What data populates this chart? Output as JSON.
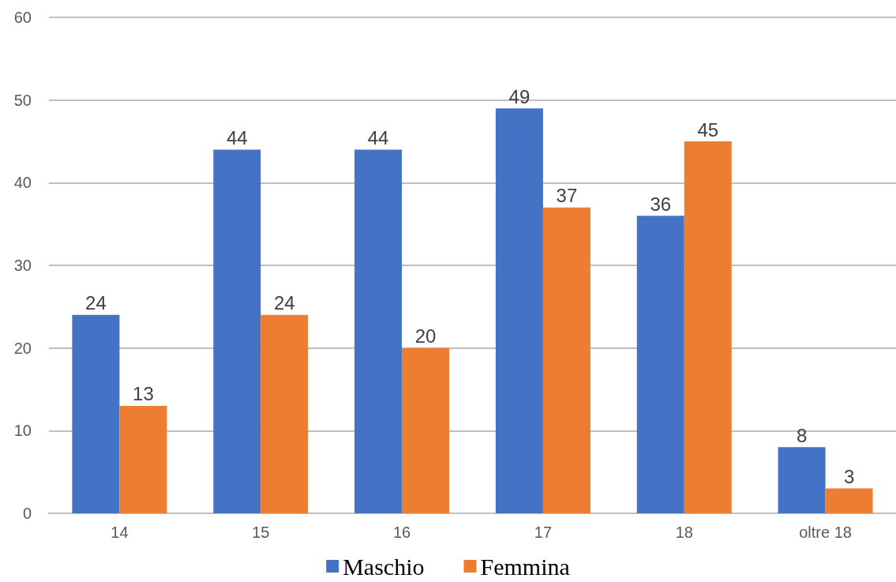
{
  "chart_data": {
    "type": "bar",
    "categories": [
      "14",
      "15",
      "16",
      "17",
      "18",
      "oltre 18"
    ],
    "series": [
      {
        "name": "Maschio",
        "color": "#4472c4",
        "values": [
          24,
          44,
          44,
          49,
          36,
          8
        ]
      },
      {
        "name": "Femmina",
        "color": "#ed7d31",
        "values": [
          13,
          24,
          20,
          37,
          45,
          3
        ]
      }
    ],
    "ylim": [
      0,
      60
    ],
    "yticks": [
      0,
      10,
      20,
      30,
      40,
      50,
      60
    ],
    "grid": "y",
    "legend": "bottom",
    "data_labels": true
  }
}
